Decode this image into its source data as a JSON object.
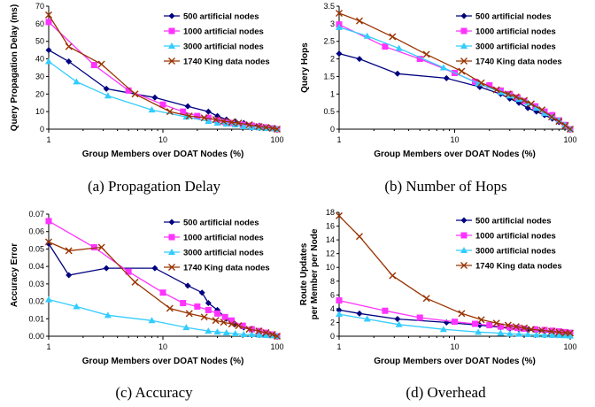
{
  "chart_data": [
    {
      "type": "line",
      "caption": "(a) Propagation Delay",
      "xlabel": "Group Members over DOAT Nodes (%)",
      "ylabel": "Query Propagation Delay (ms)",
      "xscale": "log",
      "xlim": [
        1,
        100
      ],
      "ylim": [
        0,
        70
      ],
      "yticks": [
        0,
        10,
        20,
        30,
        40,
        50,
        60,
        70
      ],
      "xticks": [
        1,
        10,
        100
      ],
      "legend_position": "top-right",
      "grid": false,
      "series": [
        {
          "name": "500 artificial nodes",
          "color": "#000080",
          "marker": "diamond",
          "x": [
            1,
            1.5,
            3.2,
            8.5,
            16.5,
            25,
            30,
            36,
            43,
            51,
            60,
            70,
            80,
            90,
            100
          ],
          "y": [
            45,
            38.5,
            23,
            18,
            13,
            10,
            7.5,
            5.5,
            4.5,
            3.5,
            2.5,
            2,
            1.2,
            0.6,
            0
          ]
        },
        {
          "name": "1000 artificial nodes",
          "color": "#ff33ff",
          "marker": "square",
          "x": [
            1,
            2.5,
            5,
            10,
            15,
            20,
            25,
            30,
            35,
            40,
            50,
            60,
            70,
            80,
            90,
            100
          ],
          "y": [
            61,
            36.5,
            22,
            14,
            10,
            7.5,
            6.5,
            5,
            4,
            3.5,
            2.5,
            2,
            1.5,
            1,
            0.5,
            0
          ]
        },
        {
          "name": "3000 artificial nodes",
          "color": "#33ccff",
          "marker": "triangle",
          "x": [
            1,
            1.75,
            3.3,
            8,
            16,
            25,
            30,
            36,
            43,
            51,
            60,
            70,
            80,
            90,
            100
          ],
          "y": [
            38.5,
            27,
            19,
            11,
            7,
            4.5,
            3.5,
            3,
            2.5,
            1.5,
            1,
            0.8,
            0.5,
            0.3,
            0
          ]
        },
        {
          "name": "1740 King data nodes",
          "color": "#993300",
          "marker": "cross",
          "x": [
            1,
            1.5,
            2.9,
            5.7,
            11.5,
            17,
            23,
            29,
            34,
            40,
            46,
            57,
            69,
            80,
            91,
            100
          ],
          "y": [
            65,
            47,
            37,
            20,
            10,
            7.5,
            6.5,
            5.5,
            4.5,
            4,
            3.5,
            2.5,
            1.5,
            1,
            0.5,
            0
          ]
        }
      ]
    },
    {
      "type": "line",
      "caption": "(b) Number of Hops",
      "xlabel": "Group Members over DOAT Nodes (%)",
      "ylabel": "Query Hops",
      "xscale": "log",
      "xlim": [
        1,
        100
      ],
      "ylim": [
        0,
        3.5
      ],
      "yticks": [
        0,
        0.5,
        1,
        1.5,
        2,
        2.5,
        3,
        3.5
      ],
      "xticks": [
        1,
        10,
        100
      ],
      "legend_position": "top-right",
      "grid": false,
      "series": [
        {
          "name": "500 artificial nodes",
          "color": "#000080",
          "marker": "diamond",
          "x": [
            1,
            1.5,
            3.2,
            8.5,
            16.5,
            25,
            30,
            36,
            43,
            51,
            60,
            70,
            80,
            90,
            100
          ],
          "y": [
            2.15,
            2.0,
            1.58,
            1.45,
            1.2,
            1.0,
            0.87,
            0.75,
            0.6,
            0.5,
            0.4,
            0.3,
            0.2,
            0.1,
            0
          ]
        },
        {
          "name": "1000 artificial nodes",
          "color": "#ff33ff",
          "marker": "square",
          "x": [
            1,
            2.5,
            5,
            10,
            15,
            20,
            25,
            30,
            35,
            40,
            50,
            60,
            70,
            80,
            90,
            100
          ],
          "y": [
            2.98,
            2.35,
            2.0,
            1.6,
            1.35,
            1.25,
            1.1,
            1.0,
            0.9,
            0.8,
            0.65,
            0.5,
            0.4,
            0.25,
            0.12,
            0
          ]
        },
        {
          "name": "3000 artificial nodes",
          "color": "#33ccff",
          "marker": "triangle",
          "x": [
            1,
            1.75,
            3.3,
            8,
            16,
            25,
            30,
            36,
            43,
            51,
            60,
            70,
            80,
            90,
            100
          ],
          "y": [
            2.9,
            2.65,
            2.3,
            1.75,
            1.3,
            1.05,
            0.95,
            0.85,
            0.75,
            0.6,
            0.45,
            0.35,
            0.25,
            0.12,
            0
          ]
        },
        {
          "name": "1740 King data nodes",
          "color": "#993300",
          "marker": "cross",
          "x": [
            1,
            1.5,
            2.9,
            5.7,
            11.5,
            17,
            23,
            29,
            34,
            40,
            46,
            57,
            69,
            80,
            91,
            100
          ],
          "y": [
            3.3,
            3.08,
            2.63,
            2.13,
            1.65,
            1.32,
            1.12,
            1.0,
            0.92,
            0.82,
            0.72,
            0.55,
            0.35,
            0.22,
            0.1,
            0
          ]
        }
      ]
    },
    {
      "type": "line",
      "caption": "(c) Accuracy",
      "xlabel": "Group Members over DOAT Nodes (%)",
      "ylabel": "Accuracy Error",
      "xscale": "log",
      "xlim": [
        1,
        100
      ],
      "ylim": [
        0,
        0.07
      ],
      "yticks": [
        0,
        0.01,
        0.02,
        0.03,
        0.04,
        0.05,
        0.06,
        0.07
      ],
      "ytick_labels": [
        "0.00",
        "0.01",
        "0.02",
        "0.03",
        "0.04",
        "0.05",
        "0.06",
        "0.07"
      ],
      "xticks": [
        1,
        10,
        100
      ],
      "legend_position": "top-right",
      "grid": false,
      "series": [
        {
          "name": "500 artificial nodes",
          "color": "#000080",
          "marker": "diamond",
          "x": [
            1,
            1.5,
            3.2,
            8.5,
            16.5,
            22,
            25,
            30,
            36,
            43,
            51,
            60,
            70,
            80,
            90,
            100
          ],
          "y": [
            0.053,
            0.035,
            0.039,
            0.039,
            0.029,
            0.025,
            0.019,
            0.015,
            0.01,
            0.007,
            0.005,
            0.004,
            0.003,
            0.002,
            0.001,
            0
          ]
        },
        {
          "name": "1000 artificial nodes",
          "color": "#ff33ff",
          "marker": "square",
          "x": [
            1,
            2.5,
            5,
            10,
            15,
            20,
            25,
            30,
            35,
            40,
            50,
            60,
            70,
            80,
            90,
            100
          ],
          "y": [
            0.066,
            0.051,
            0.037,
            0.025,
            0.019,
            0.017,
            0.015,
            0.013,
            0.011,
            0.009,
            0.006,
            0.004,
            0.003,
            0.002,
            0.001,
            0
          ]
        },
        {
          "name": "3000 artificial nodes",
          "color": "#33ccff",
          "marker": "triangle",
          "x": [
            1,
            1.75,
            3.3,
            8,
            16,
            25,
            30,
            36,
            43,
            51,
            60,
            70,
            80,
            90,
            100
          ],
          "y": [
            0.021,
            0.017,
            0.012,
            0.009,
            0.005,
            0.003,
            0.0025,
            0.002,
            0.0015,
            0.001,
            0.001,
            0.0007,
            0.0005,
            0.0003,
            0
          ]
        },
        {
          "name": "1740 King data nodes",
          "color": "#993300",
          "marker": "cross",
          "x": [
            1,
            1.5,
            2.9,
            5.7,
            11.5,
            17,
            23,
            29,
            34,
            40,
            46,
            57,
            69,
            80,
            91,
            100
          ],
          "y": [
            0.054,
            0.049,
            0.051,
            0.031,
            0.016,
            0.013,
            0.011,
            0.009,
            0.008,
            0.007,
            0.006,
            0.004,
            0.003,
            0.002,
            0.001,
            0
          ]
        }
      ]
    },
    {
      "type": "line",
      "caption": "(d) Overhead",
      "xlabel": "Group Members over DOAT Nodes (%)",
      "ylabel": "Route Updates per Member per Node",
      "ylabel_lines": [
        "Route Updates",
        "per Member per Node"
      ],
      "xscale": "log",
      "xlim": [
        1,
        100
      ],
      "ylim": [
        0,
        18
      ],
      "yticks": [
        0,
        2,
        4,
        6,
        8,
        10,
        12,
        14,
        16,
        18
      ],
      "xticks": [
        1,
        10,
        100
      ],
      "legend_position": "top-right",
      "grid": false,
      "series": [
        {
          "name": "500 artificial nodes",
          "color": "#000080",
          "marker": "diamond",
          "x": [
            1,
            1.5,
            3.2,
            8.5,
            16.5,
            25,
            30,
            36,
            43,
            51,
            60,
            70,
            80,
            90,
            100
          ],
          "y": [
            3.8,
            3.3,
            2.5,
            2.0,
            1.6,
            1.3,
            1.1,
            1.0,
            0.9,
            0.8,
            0.7,
            0.6,
            0.55,
            0.5,
            0.45
          ]
        },
        {
          "name": "1000 artificial nodes",
          "color": "#ff33ff",
          "marker": "square",
          "x": [
            1,
            2.5,
            5,
            10,
            15,
            20,
            25,
            30,
            35,
            40,
            50,
            60,
            70,
            80,
            90,
            100
          ],
          "y": [
            5.2,
            3.7,
            2.7,
            2.1,
            1.8,
            1.6,
            1.4,
            1.3,
            1.2,
            1.1,
            1.0,
            0.9,
            0.8,
            0.7,
            0.6,
            0.5
          ]
        },
        {
          "name": "3000 artificial nodes",
          "color": "#33ccff",
          "marker": "triangle",
          "x": [
            1,
            1.75,
            3.3,
            8,
            16,
            25,
            30,
            36,
            43,
            51,
            60,
            70,
            80,
            90,
            100
          ],
          "y": [
            3.2,
            2.5,
            1.7,
            1.0,
            0.6,
            0.45,
            0.35,
            0.3,
            0.25,
            0.2,
            0.18,
            0.15,
            0.12,
            0.1,
            0.05
          ]
        },
        {
          "name": "1740 King data nodes",
          "color": "#993300",
          "marker": "cross",
          "x": [
            1,
            1.5,
            2.9,
            5.7,
            11.5,
            17,
            23,
            29,
            34,
            40,
            46,
            57,
            69,
            80,
            91,
            100
          ],
          "y": [
            17.5,
            14.5,
            8.8,
            5.5,
            3.3,
            2.4,
            1.9,
            1.6,
            1.4,
            1.2,
            1.0,
            0.85,
            0.7,
            0.6,
            0.5,
            0.45
          ]
        }
      ]
    }
  ]
}
